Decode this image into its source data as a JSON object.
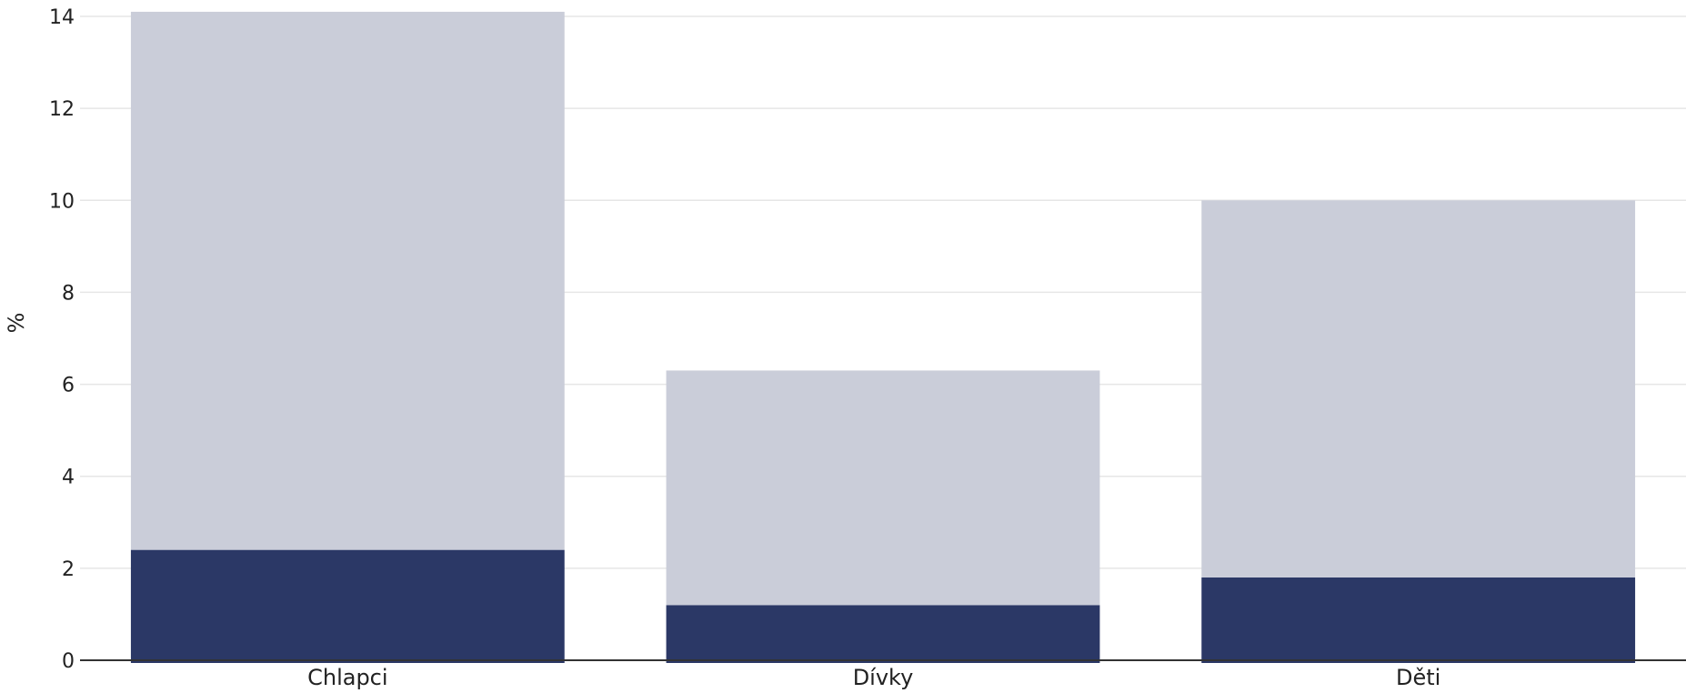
{
  "chart_data": {
    "type": "bar",
    "stacked": true,
    "categories": [
      "Chlapci",
      "Dívky",
      "Děti"
    ],
    "series": [
      {
        "values": [
          2.4,
          1.2,
          1.8
        ],
        "color": "#2b3866"
      },
      {
        "values": [
          11.7,
          5.1,
          8.2
        ],
        "color": "#cacdd9"
      }
    ],
    "title": "",
    "xlabel": "",
    "ylabel": "%",
    "ylim": [
      0,
      14
    ],
    "yticks": [
      0,
      2,
      4,
      6,
      8,
      10,
      12,
      14
    ],
    "grid": true,
    "legend": "none"
  }
}
